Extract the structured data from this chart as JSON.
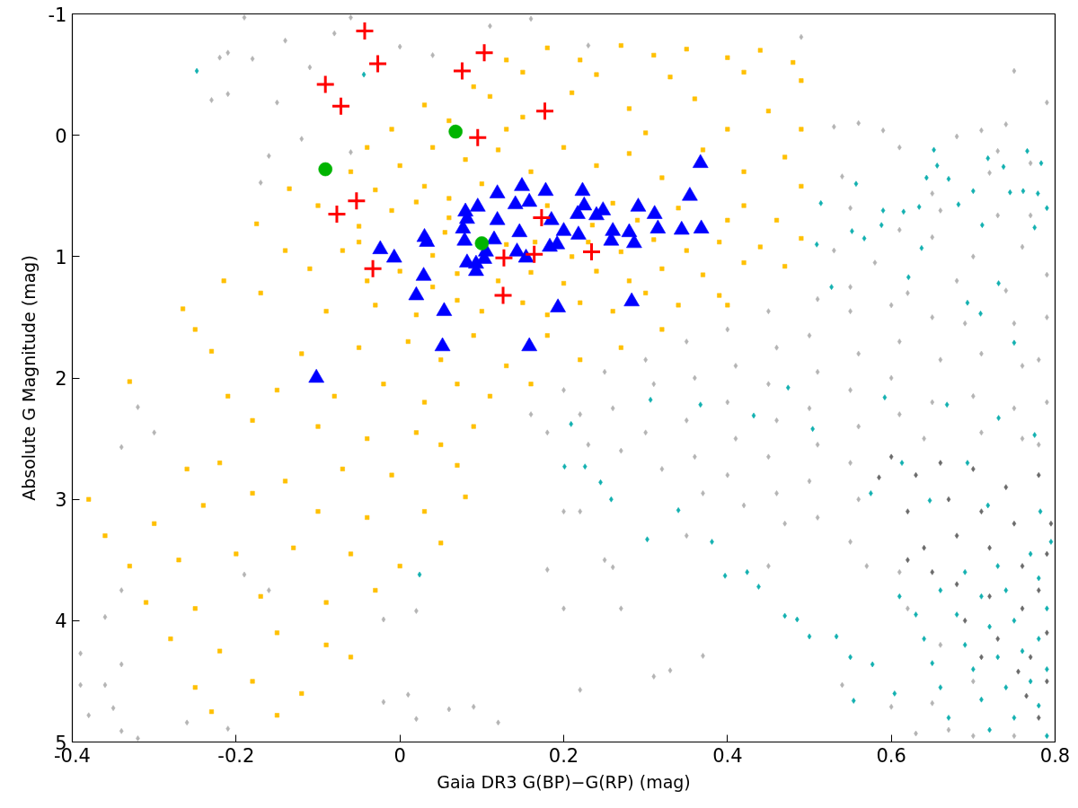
{
  "chart_data": {
    "type": "scatter",
    "xlabel": "Gaia DR3 G(BP)−G(RP) (mag)",
    "ylabel": "Absolute G Magnitude (mag)",
    "xlim": [
      -0.4,
      0.8
    ],
    "ylim": [
      5,
      -1
    ],
    "xticks": [
      -0.4,
      -0.2,
      0,
      0.2,
      0.4,
      0.6,
      0.8
    ],
    "yticks": [
      -1,
      0,
      1,
      2,
      3,
      4,
      5
    ],
    "series": [
      {
        "color": "#b4b4b4",
        "marker": "diamond",
        "x": [
          -0.19,
          -0.22,
          -0.21,
          -0.18,
          -0.23,
          -0.21,
          -0.17,
          -0.14,
          -0.11,
          -0.08,
          -0.06,
          0.0,
          0.04,
          0.11,
          0.16,
          -0.15,
          -0.12,
          -0.06,
          -0.16,
          0.49,
          0.23,
          0.75,
          0.79,
          0.56,
          0.53,
          0.59,
          0.71,
          0.74,
          0.68,
          0.61,
          0.73,
          0.54,
          0.65,
          0.72,
          0.77,
          0.55,
          0.61,
          0.66,
          0.73,
          0.77,
          0.53,
          0.58,
          0.65,
          0.7,
          0.76,
          0.55,
          0.62,
          0.68,
          0.74,
          0.79,
          0.16,
          0.18,
          0.2,
          0.22,
          0.23,
          0.25,
          0.26,
          0.27,
          0.3,
          0.31,
          0.3,
          0.32,
          0.35,
          0.36,
          0.35,
          0.36,
          0.37,
          0.4,
          0.41,
          0.4,
          0.41,
          0.4,
          0.42,
          0.45,
          0.46,
          0.45,
          0.46,
          0.45,
          0.46,
          0.47,
          0.51,
          0.5,
          0.51,
          0.5,
          0.51,
          0.5,
          0.51,
          0.55,
          0.56,
          0.55,
          0.56,
          0.55,
          0.56,
          0.55,
          0.57,
          0.6,
          0.61,
          0.6,
          0.61,
          0.61,
          0.62,
          0.65,
          0.66,
          0.65,
          0.64,
          0.66,
          0.65,
          0.67,
          0.69,
          0.71,
          0.7,
          0.71,
          0.7,
          0.7,
          0.75,
          0.76,
          0.75,
          0.76,
          0.75,
          0.79,
          0.78,
          0.79,
          0.78,
          0.27,
          0.22,
          0.33,
          0.37,
          0.2,
          0.54,
          0.6,
          0.63,
          0.18,
          0.26,
          0.25,
          0.2,
          0.22,
          0.31,
          0.35,
          0.45,
          -0.39,
          -0.39,
          -0.38,
          -0.36,
          -0.34,
          -0.34,
          -0.35,
          -0.32,
          -0.36,
          -0.34,
          -0.32,
          -0.3,
          -0.34,
          -0.26,
          -0.21,
          -0.02,
          0.01,
          0.02,
          0.06,
          0.09,
          0.12,
          0.02,
          -0.02,
          -0.19,
          -0.16
        ],
        "values": [
          -0.97,
          -0.64,
          -0.68,
          -0.63,
          -0.29,
          -0.34,
          0.39,
          -0.78,
          -0.56,
          -0.84,
          -0.97,
          -0.73,
          -0.66,
          -0.9,
          -0.96,
          -0.27,
          0.03,
          0.14,
          0.17,
          -0.81,
          -0.74,
          -0.53,
          -0.27,
          -0.1,
          -0.07,
          -0.04,
          -0.04,
          -0.09,
          0.01,
          0.1,
          0.13,
          0.34,
          0.48,
          0.31,
          0.23,
          0.6,
          0.78,
          0.62,
          0.66,
          0.66,
          0.95,
          1.05,
          0.84,
          1.0,
          0.92,
          1.25,
          1.3,
          1.2,
          1.28,
          1.15,
          2.3,
          2.45,
          2.1,
          2.3,
          2.55,
          1.95,
          2.25,
          2.6,
          1.85,
          2.05,
          2.45,
          2.75,
          1.7,
          2.0,
          2.35,
          2.65,
          2.95,
          1.6,
          1.9,
          2.2,
          2.5,
          2.8,
          3.05,
          1.45,
          1.75,
          2.05,
          2.35,
          2.65,
          2.95,
          3.2,
          1.35,
          1.65,
          1.95,
          2.25,
          2.55,
          2.85,
          3.15,
          1.45,
          1.8,
          2.1,
          2.4,
          2.7,
          3.0,
          3.35,
          3.55,
          1.4,
          1.7,
          2.0,
          2.3,
          3.6,
          3.9,
          1.5,
          1.85,
          2.2,
          2.5,
          4.2,
          4.68,
          4.9,
          1.55,
          1.8,
          2.15,
          2.45,
          4.5,
          4.95,
          1.55,
          1.9,
          2.25,
          2.5,
          4.95,
          1.5,
          1.85,
          2.2,
          2.55,
          3.9,
          4.57,
          4.41,
          4.29,
          3.9,
          4.53,
          4.71,
          4.93,
          3.58,
          3.56,
          3.5,
          3.1,
          3.1,
          4.46,
          3.3,
          3.55,
          4.27,
          4.53,
          4.78,
          4.53,
          4.36,
          4.91,
          4.72,
          4.97,
          3.97,
          3.75,
          2.24,
          2.45,
          2.57,
          4.84,
          4.89,
          4.67,
          4.61,
          4.81,
          4.73,
          4.71,
          4.84,
          3.92,
          3.99,
          3.62,
          3.75
        ]
      },
      {
        "color": "#6a6a6a",
        "marker": "diamond",
        "x": [
          0.585,
          0.6,
          0.62,
          0.63,
          0.64,
          0.66,
          0.67,
          0.68,
          0.68,
          0.69,
          0.7,
          0.71,
          0.72,
          0.72,
          0.73,
          0.74,
          0.75,
          0.76,
          0.76,
          0.77,
          0.78,
          0.795,
          0.79,
          0.78,
          0.79,
          0.79,
          0.78,
          0.755,
          0.71,
          0.765,
          0.65,
          0.62
        ],
        "values": [
          2.82,
          2.65,
          3.1,
          2.8,
          3.4,
          2.7,
          3.0,
          3.3,
          3.7,
          4.0,
          2.75,
          3.1,
          3.4,
          3.8,
          4.15,
          2.9,
          3.2,
          3.55,
          3.9,
          4.3,
          2.8,
          3.2,
          3.45,
          3.75,
          4.1,
          4.5,
          4.8,
          4.42,
          4.3,
          4.62,
          3.6,
          3.5
        ]
      },
      {
        "color": "#12b0b0",
        "marker": "diamond",
        "x": [
          0.61,
          0.63,
          0.64,
          0.65,
          0.66,
          0.67,
          0.66,
          0.68,
          0.69,
          0.7,
          0.71,
          0.72,
          0.69,
          0.71,
          0.72,
          0.73,
          0.74,
          0.75,
          0.73,
          0.74,
          0.75,
          0.76,
          0.77,
          0.78,
          0.79,
          0.77,
          0.78,
          0.79,
          0.78,
          0.79,
          0.795,
          0.652,
          0.656,
          0.67,
          0.643,
          0.718,
          0.737,
          0.766,
          0.783,
          0.745,
          0.761,
          0.779,
          0.79,
          0.775,
          0.7,
          0.711,
          0.682,
          0.634,
          0.615,
          0.59,
          0.557,
          0.588,
          0.637,
          0.567,
          0.552,
          0.514,
          0.509,
          0.731,
          0.621,
          0.527,
          0.709,
          0.693,
          0.75,
          0.201,
          0.226,
          0.245,
          0.258,
          0.302,
          0.34,
          0.381,
          0.397,
          0.424,
          0.438,
          0.47,
          0.485,
          0.5,
          0.533,
          0.55,
          0.554,
          0.577,
          0.604,
          0.209,
          0.306,
          0.367,
          0.432,
          0.504,
          0.474,
          0.592,
          0.668,
          0.731,
          0.775,
          0.613,
          0.693,
          0.575,
          0.647,
          0.718,
          0.782,
          0.024,
          -0.248,
          -0.044
        ],
        "values": [
          3.8,
          3.95,
          4.15,
          4.35,
          4.55,
          4.8,
          3.75,
          3.95,
          4.2,
          4.4,
          4.65,
          4.9,
          3.6,
          3.8,
          4.05,
          4.3,
          4.55,
          4.8,
          3.55,
          3.75,
          4.0,
          4.25,
          4.5,
          4.7,
          4.95,
          3.45,
          3.65,
          3.9,
          4.15,
          4.4,
          3.35,
          0.12,
          0.25,
          0.36,
          0.35,
          0.19,
          0.26,
          0.13,
          0.23,
          0.47,
          0.46,
          0.48,
          0.6,
          0.76,
          0.46,
          0.74,
          0.57,
          0.59,
          0.63,
          0.62,
          0.4,
          0.74,
          0.93,
          0.85,
          0.79,
          0.56,
          0.9,
          1.22,
          1.17,
          1.25,
          1.47,
          1.38,
          1.71,
          2.73,
          2.73,
          2.86,
          3.0,
          3.33,
          3.09,
          3.35,
          3.63,
          3.6,
          3.72,
          3.96,
          3.99,
          4.13,
          4.13,
          4.3,
          4.66,
          4.36,
          4.6,
          2.38,
          2.18,
          2.22,
          2.31,
          2.42,
          2.08,
          2.16,
          2.22,
          2.33,
          2.47,
          2.7,
          2.7,
          2.95,
          3.01,
          3.05,
          3.1,
          3.62,
          -0.53,
          -0.5
        ]
      },
      {
        "color": "#ffc000",
        "marker": "square",
        "x": [
          0.13,
          0.18,
          0.22,
          0.27,
          0.31,
          0.35,
          0.4,
          0.44,
          0.48,
          0.49,
          0.09,
          0.15,
          0.24,
          0.33,
          0.42,
          0.03,
          0.06,
          0.11,
          0.15,
          0.21,
          0.28,
          0.36,
          0.45,
          0.49,
          0.4,
          0.3,
          0.13,
          -0.01,
          -0.04,
          -0.06,
          0.0,
          0.04,
          0.08,
          0.12,
          0.16,
          0.2,
          0.24,
          0.28,
          0.32,
          0.37,
          0.42,
          0.47,
          0.49,
          0.03,
          -0.03,
          0.1,
          -0.1,
          -0.05,
          -0.01,
          0.02,
          0.06,
          0.06,
          0.18,
          0.235,
          0.26,
          0.29,
          0.34,
          0.4,
          0.42,
          0.46,
          0.49,
          0.44,
          0.39,
          0.35,
          0.31,
          0.27,
          0.23,
          0.21,
          0.165,
          0.13,
          0.055,
          0.04,
          -0.05,
          -0.07,
          -0.11,
          -0.04,
          0.0,
          0.04,
          0.07,
          0.12,
          0.16,
          0.2,
          0.24,
          0.28,
          0.32,
          0.37,
          0.42,
          0.47,
          0.39,
          0.34,
          0.3,
          0.26,
          0.22,
          0.18,
          0.15,
          0.1,
          0.07,
          0.02,
          -0.03,
          -0.09,
          0.4,
          0.32,
          0.27,
          0.22,
          0.18,
          0.13,
          0.09,
          0.05,
          0.01,
          -0.05,
          -0.12,
          0.16,
          0.11,
          0.07,
          0.03,
          -0.02,
          -0.08,
          -0.15,
          0.09,
          0.05,
          0.02,
          -0.04,
          -0.1,
          -0.18,
          -0.21,
          0.07,
          -0.01,
          -0.07,
          -0.14,
          -0.22,
          -0.26,
          -0.33,
          -0.38,
          -0.36,
          -0.3,
          -0.24,
          -0.18,
          -0.1,
          -0.04,
          0.03,
          0.05,
          0.08,
          0.0,
          -0.06,
          -0.13,
          -0.2,
          -0.27,
          -0.33,
          -0.31,
          -0.25,
          -0.17,
          -0.09,
          -0.03,
          -0.28,
          -0.22,
          -0.15,
          -0.09,
          -0.06,
          -0.25,
          -0.18,
          -0.12,
          -0.23,
          -0.15,
          -0.135,
          -0.175,
          -0.215,
          -0.265,
          -0.25,
          -0.23,
          -0.17,
          -0.14
        ],
        "values": [
          -0.62,
          -0.72,
          -0.62,
          -0.74,
          -0.66,
          -0.71,
          -0.64,
          -0.7,
          -0.6,
          -0.45,
          -0.4,
          -0.52,
          -0.5,
          -0.48,
          -0.52,
          -0.25,
          -0.12,
          -0.32,
          -0.15,
          -0.35,
          -0.22,
          -0.3,
          -0.2,
          -0.05,
          -0.05,
          -0.02,
          -0.05,
          -0.05,
          0.1,
          0.3,
          0.25,
          0.1,
          0.2,
          0.12,
          0.3,
          0.1,
          0.25,
          0.15,
          0.35,
          0.12,
          0.3,
          0.18,
          0.42,
          0.42,
          0.45,
          0.4,
          0.58,
          0.75,
          0.62,
          0.55,
          0.68,
          0.52,
          0.58,
          0.74,
          0.56,
          0.7,
          0.6,
          0.7,
          0.58,
          0.7,
          0.85,
          0.92,
          0.88,
          0.95,
          0.86,
          0.96,
          0.88,
          1.0,
          0.88,
          0.9,
          0.8,
          0.99,
          0.88,
          0.95,
          1.1,
          1.2,
          1.12,
          1.25,
          1.14,
          1.2,
          1.13,
          1.22,
          1.12,
          1.2,
          1.1,
          1.15,
          1.05,
          1.08,
          1.32,
          1.4,
          1.3,
          1.45,
          1.38,
          1.48,
          1.38,
          1.45,
          1.36,
          1.48,
          1.4,
          1.45,
          1.4,
          1.6,
          1.75,
          1.85,
          1.65,
          1.9,
          1.65,
          1.85,
          1.7,
          1.75,
          1.8,
          2.05,
          2.15,
          2.05,
          2.2,
          2.05,
          2.15,
          2.1,
          2.4,
          2.55,
          2.45,
          2.5,
          2.4,
          2.35,
          2.15,
          2.72,
          2.8,
          2.75,
          2.85,
          2.7,
          2.75,
          2.03,
          3.0,
          3.3,
          3.2,
          3.05,
          2.95,
          3.1,
          3.15,
          3.1,
          3.36,
          2.98,
          3.55,
          3.45,
          3.4,
          3.45,
          3.5,
          3.55,
          3.85,
          3.9,
          3.8,
          3.85,
          3.75,
          4.15,
          4.25,
          4.1,
          4.2,
          4.3,
          4.55,
          4.5,
          4.6,
          4.75,
          4.78,
          0.44,
          0.73,
          1.2,
          1.43,
          1.6,
          1.78,
          1.3,
          0.95
        ]
      },
      {
        "color": "#0000ff",
        "marker": "triangle",
        "x": [
          0.149,
          0.119,
          0.178,
          0.223,
          0.095,
          0.141,
          0.158,
          0.08,
          0.225,
          0.217,
          0.24,
          0.248,
          0.291,
          0.311,
          0.082,
          0.119,
          0.185,
          0.077,
          0.146,
          0.2,
          0.218,
          0.26,
          0.28,
          0.315,
          0.079,
          0.115,
          0.03,
          0.033,
          0.183,
          0.192,
          0.258,
          0.286,
          -0.024,
          -0.007,
          0.105,
          0.143,
          0.154,
          0.082,
          0.103,
          0.093,
          0.093,
          0.029,
          0.02,
          0.054,
          0.193,
          0.283,
          0.052,
          0.158,
          -0.102,
          0.344,
          0.368,
          0.367,
          0.354
        ],
        "values": [
          0.42,
          0.48,
          0.46,
          0.46,
          0.59,
          0.57,
          0.55,
          0.63,
          0.58,
          0.65,
          0.66,
          0.62,
          0.59,
          0.65,
          0.69,
          0.7,
          0.7,
          0.77,
          0.8,
          0.79,
          0.82,
          0.79,
          0.8,
          0.77,
          0.87,
          0.86,
          0.84,
          0.88,
          0.92,
          0.9,
          0.87,
          0.89,
          0.94,
          1.01,
          0.96,
          0.96,
          1.01,
          1.05,
          1.02,
          1.06,
          1.12,
          1.16,
          1.32,
          1.45,
          1.42,
          1.37,
          1.74,
          1.74,
          2.0,
          0.78,
          0.77,
          0.23,
          0.5
        ]
      },
      {
        "color": "#ff0000",
        "marker": "cross",
        "x": [
          -0.043,
          -0.027,
          0.103,
          0.076,
          -0.091,
          -0.072,
          0.177,
          0.095,
          -0.053,
          -0.077,
          0.173,
          -0.033,
          0.127,
          0.164,
          0.234,
          0.126
        ],
        "values": [
          -0.86,
          -0.59,
          -0.68,
          -0.53,
          -0.42,
          -0.24,
          -0.2,
          0.02,
          0.54,
          0.65,
          0.68,
          1.1,
          1.01,
          0.98,
          0.96,
          1.32
        ]
      },
      {
        "color": "#00b400",
        "marker": "circle",
        "x": [
          0.068,
          -0.091,
          0.1
        ],
        "values": [
          -0.03,
          0.28,
          0.89
        ]
      }
    ]
  }
}
